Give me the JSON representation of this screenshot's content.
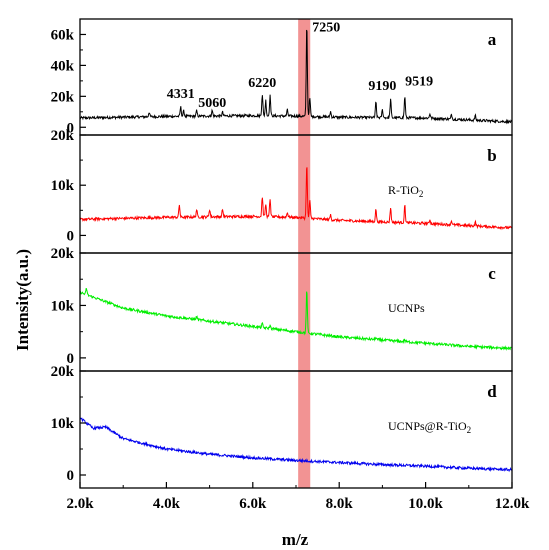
{
  "chart_data": {
    "type": "line",
    "xlabel": "m/z",
    "ylabel": "Intensity(a.u.)",
    "x_ticks": [
      "2.0k",
      "4.0k",
      "6.0k",
      "8.0k",
      "10.0k",
      "12.0k"
    ],
    "x_tick_values": [
      2000,
      4000,
      6000,
      8000,
      10000,
      12000
    ],
    "xlim": [
      2000,
      12000
    ],
    "highlight_band": {
      "from": 7050,
      "to": 7330,
      "color": "#f08080"
    },
    "panels": [
      {
        "letter": "a",
        "sample": "",
        "color": "#000000",
        "ylim": [
          -5000,
          70000
        ],
        "y_ticks": [
          "0",
          "20k",
          "40k",
          "60k"
        ],
        "y_tick_values": [
          0,
          20000,
          40000,
          60000
        ],
        "baseline": [
          [
            2000,
            6000
          ],
          [
            4000,
            7000
          ],
          [
            6000,
            7500
          ],
          [
            7000,
            7200
          ],
          [
            8000,
            6500
          ],
          [
            10000,
            6000
          ],
          [
            12000,
            3500
          ]
        ],
        "peaks": [
          [
            3600,
            3000
          ],
          [
            4331,
            6000
          ],
          [
            4400,
            3500
          ],
          [
            4700,
            3500
          ],
          [
            5060,
            3500
          ],
          [
            5300,
            2500
          ],
          [
            6220,
            14000
          ],
          [
            6300,
            10000
          ],
          [
            6400,
            13000
          ],
          [
            6800,
            4000
          ],
          [
            7250,
            61000
          ],
          [
            7320,
            12000
          ],
          [
            7800,
            3500
          ],
          [
            8850,
            10000
          ],
          [
            9000,
            5000
          ],
          [
            9190,
            12000
          ],
          [
            9519,
            14000
          ],
          [
            10100,
            3000
          ],
          [
            10600,
            3000
          ],
          [
            11150,
            3000
          ]
        ],
        "peak_labels": [
          {
            "text": "4331",
            "x": 4331,
            "y": 19000
          },
          {
            "text": "5060",
            "x": 5060,
            "y": 13000
          },
          {
            "text": "6220",
            "x": 6220,
            "y": 26000
          },
          {
            "text": "7250",
            "x": 7700,
            "y": 62000
          },
          {
            "text": "9190",
            "x": 9000,
            "y": 24000
          },
          {
            "text": "9519",
            "x": 9850,
            "y": 27000
          }
        ]
      },
      {
        "letter": "b",
        "sample": "R-TiO",
        "sample_sub": "2",
        "color": "#ff0000",
        "ylim": [
          -3500,
          20000
        ],
        "y_ticks": [
          "0",
          "10k",
          "20k"
        ],
        "y_tick_values": [
          0,
          10000,
          20000
        ],
        "baseline": [
          [
            2000,
            3200
          ],
          [
            4000,
            3600
          ],
          [
            6000,
            3800
          ],
          [
            7000,
            3600
          ],
          [
            8000,
            3000
          ],
          [
            10000,
            2400
          ],
          [
            12000,
            1500
          ]
        ],
        "peaks": [
          [
            4300,
            2500
          ],
          [
            4700,
            1500
          ],
          [
            5000,
            1500
          ],
          [
            5300,
            1500
          ],
          [
            6220,
            4000
          ],
          [
            6300,
            2500
          ],
          [
            6400,
            3500
          ],
          [
            6800,
            1000
          ],
          [
            7250,
            11000
          ],
          [
            7320,
            3500
          ],
          [
            7800,
            1000
          ],
          [
            8850,
            2500
          ],
          [
            9190,
            3000
          ],
          [
            9519,
            3500
          ],
          [
            10100,
            800
          ],
          [
            10600,
            800
          ],
          [
            11150,
            800
          ]
        ],
        "peak_labels": []
      },
      {
        "letter": "c",
        "sample": "UCNPs",
        "sample_sub": "",
        "color": "#00ee00",
        "ylim": [
          -2500,
          20000
        ],
        "y_ticks": [
          "0",
          "10k",
          "20k"
        ],
        "y_tick_values": [
          0,
          10000,
          20000
        ],
        "baseline": [
          [
            2000,
            12500
          ],
          [
            3000,
            9500
          ],
          [
            4000,
            8000
          ],
          [
            5000,
            7000
          ],
          [
            6000,
            6000
          ],
          [
            7000,
            5000
          ],
          [
            8000,
            4000
          ],
          [
            9000,
            3400
          ],
          [
            10000,
            2800
          ],
          [
            11000,
            2200
          ],
          [
            12000,
            1800
          ]
        ],
        "peaks": [
          [
            2150,
            1200
          ],
          [
            4700,
            600
          ],
          [
            6220,
            700
          ],
          [
            6400,
            600
          ],
          [
            7250,
            8500
          ],
          [
            8850,
            400
          ],
          [
            9519,
            400
          ]
        ],
        "peak_labels": []
      },
      {
        "letter": "d",
        "sample": "UCNPs@R-TiO",
        "sample_sub": "2",
        "color": "#0000ee",
        "ylim": [
          -2500,
          20000
        ],
        "y_ticks": [
          "0",
          "10k",
          "20k"
        ],
        "y_tick_values": [
          0,
          10000,
          20000
        ],
        "baseline": [
          [
            2000,
            11000
          ],
          [
            2300,
            9000
          ],
          [
            2600,
            9200
          ],
          [
            3000,
            7000
          ],
          [
            4000,
            5000
          ],
          [
            5000,
            4000
          ],
          [
            6000,
            3300
          ],
          [
            7000,
            2800
          ],
          [
            8000,
            2400
          ],
          [
            9000,
            2000
          ],
          [
            10000,
            1700
          ],
          [
            11000,
            1300
          ],
          [
            12000,
            1000
          ]
        ],
        "peaks": [],
        "peak_labels": []
      }
    ]
  }
}
